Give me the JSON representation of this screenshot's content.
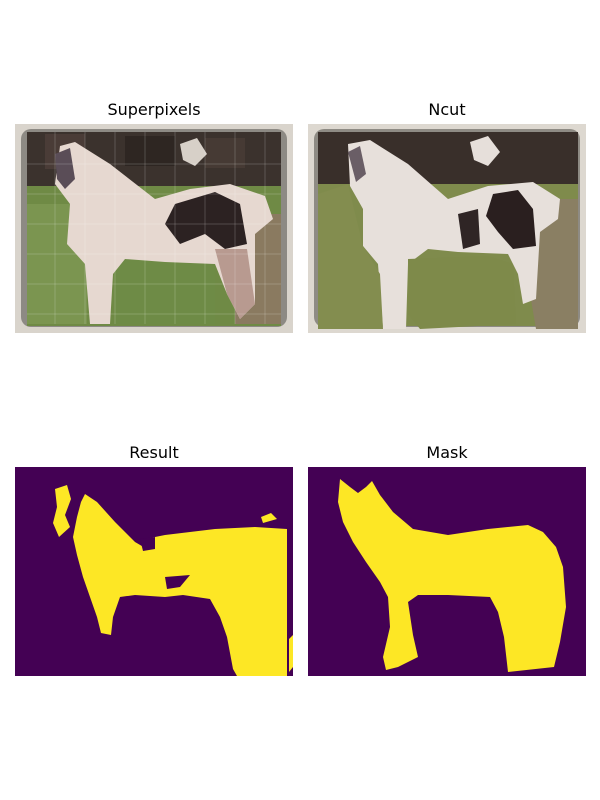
{
  "figure": {
    "panels": [
      {
        "title": "Superpixels"
      },
      {
        "title": "Ncut"
      },
      {
        "title": "Result"
      },
      {
        "title": "Mask"
      }
    ]
  },
  "colors": {
    "mask_background": "#440154",
    "mask_foreground": "#fde725",
    "sky_dark": "#3a312c",
    "grass": "#7e8c4c",
    "horse_white": "#e8dfda",
    "horse_black": "#2a1f1f",
    "frame_gray": "#ddd8d0",
    "ground_brown": "#8a7e62"
  }
}
